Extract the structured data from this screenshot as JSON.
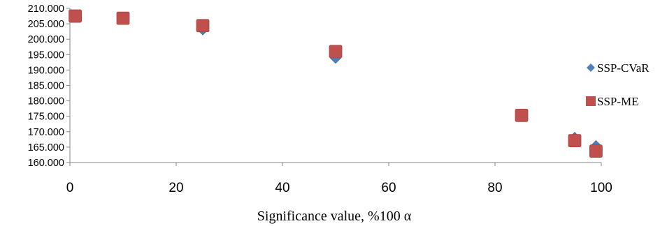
{
  "chart_data": {
    "type": "scatter",
    "title": "",
    "xlabel": "Significance value, %100 α",
    "ylabel": "",
    "xlim": [
      0,
      100
    ],
    "ylim": [
      160,
      210
    ],
    "x_ticks": [
      {
        "value": 0,
        "label": "0"
      },
      {
        "value": 20,
        "label": "20"
      },
      {
        "value": 40,
        "label": "40"
      },
      {
        "value": 60,
        "label": "60"
      },
      {
        "value": 80,
        "label": "80"
      },
      {
        "value": 100,
        "label": "100"
      }
    ],
    "y_ticks": [
      {
        "value": 160,
        "label": "160.000"
      },
      {
        "value": 165,
        "label": "165.000"
      },
      {
        "value": 170,
        "label": "170.000"
      },
      {
        "value": 175,
        "label": "175.000"
      },
      {
        "value": 180,
        "label": "180.000"
      },
      {
        "value": 185,
        "label": "185.000"
      },
      {
        "value": 190,
        "label": "190.000"
      },
      {
        "value": 195,
        "label": "195.000"
      },
      {
        "value": 200,
        "label": "200.000"
      },
      {
        "value": 205,
        "label": "205.000"
      },
      {
        "value": 210,
        "label": "210.000"
      }
    ],
    "grid": false,
    "legend_position": "right",
    "series": [
      {
        "name": "SSP-CVaR",
        "marker": "diamond",
        "color": "#4f81bd",
        "points": [
          {
            "x": 1,
            "y": 207.3
          },
          {
            "x": 10,
            "y": 206.7
          },
          {
            "x": 25,
            "y": 203.2
          },
          {
            "x": 50,
            "y": 194.0
          },
          {
            "x": 85,
            "y": 175.4
          },
          {
            "x": 95,
            "y": 168.0
          },
          {
            "x": 99,
            "y": 165.3
          }
        ]
      },
      {
        "name": "SSP-ME",
        "marker": "square",
        "color": "#c0504d",
        "points": [
          {
            "x": 1,
            "y": 207.5
          },
          {
            "x": 10,
            "y": 206.8
          },
          {
            "x": 25,
            "y": 204.4
          },
          {
            "x": 50,
            "y": 196.0
          },
          {
            "x": 85,
            "y": 175.3
          },
          {
            "x": 95,
            "y": 167.1
          },
          {
            "x": 99,
            "y": 163.7
          }
        ]
      }
    ]
  }
}
